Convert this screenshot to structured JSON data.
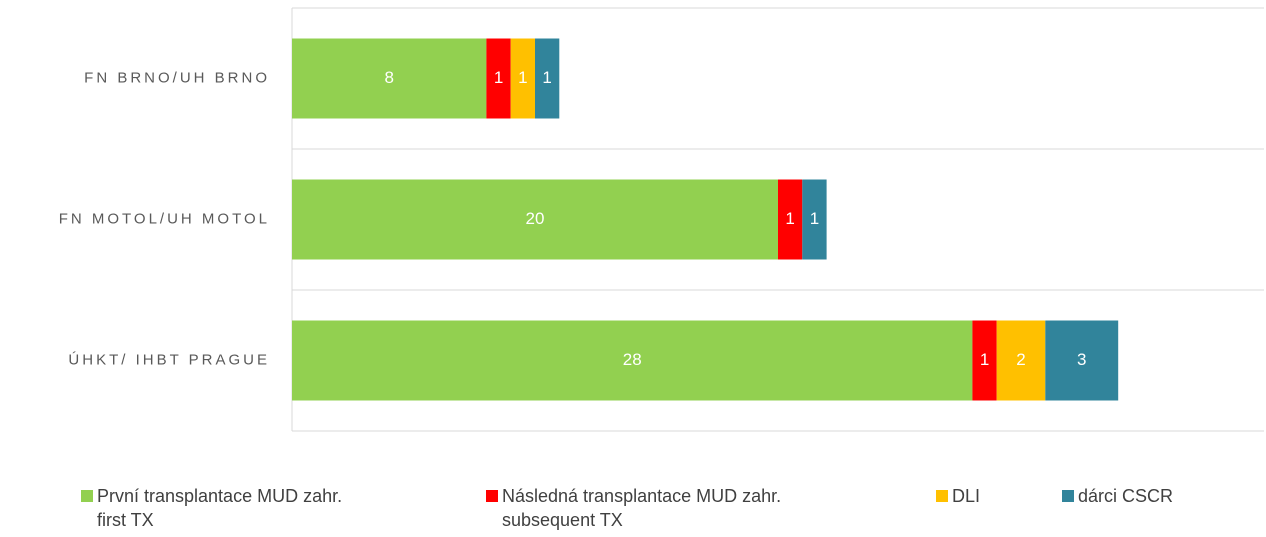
{
  "chart_data": {
    "type": "stacked-bar-horizontal",
    "categories": [
      "FN BRNO/UH BRNO",
      "FN MOTOL/UH  MOTOL",
      "ÚHKT/ IHBT PRAGUE"
    ],
    "series": [
      {
        "name": "První transplantace MUD zahr.\nfirst TX",
        "color": "#92d050",
        "values": [
          8,
          20,
          28
        ]
      },
      {
        "name": "Následná transplantace  MUD zahr.\nsubsequent TX",
        "color": "#ff0000",
        "values": [
          1,
          1,
          1
        ]
      },
      {
        "name": "DLI",
        "color": "#ffc000",
        "values": [
          1,
          null,
          2
        ]
      },
      {
        "name": "dárci CSCR",
        "color": "#31849b",
        "values": [
          1,
          1,
          3
        ]
      }
    ],
    "xlim": [
      0,
      40
    ]
  }
}
